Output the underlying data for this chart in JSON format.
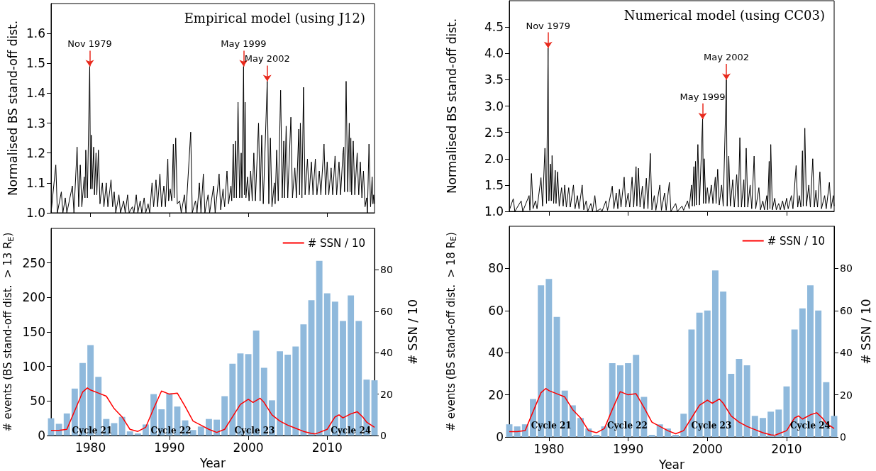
{
  "chart_data": [
    {
      "type": "line",
      "title": "Empirical model (using J12)",
      "ylabel": "Normalised BS stand-off dist.",
      "xlim": [
        1975,
        2016
      ],
      "xticks": [
        1980,
        1990,
        2000,
        2010
      ],
      "ylim": [
        1.0,
        1.7
      ],
      "yticks": [
        {
          "value": 1.0,
          "label": "1.0"
        },
        1.1,
        1.2,
        1.3,
        1.4,
        1.5,
        1.6
      ],
      "tick_labels": "y",
      "grid": false,
      "color": "#000000",
      "marker": "none",
      "x": [
        1975.0,
        1975.6,
        1975.8,
        1976.3,
        1976.5,
        1976.8,
        1977.0,
        1977.7,
        1977.9,
        1978.3,
        1978.5,
        1978.7,
        1978.9,
        1979.2,
        1979.3,
        1979.4,
        1979.6,
        1979.9,
        1980.0,
        1980.1,
        1980.2,
        1980.4,
        1980.5,
        1980.7,
        1980.8,
        1981.0,
        1981.2,
        1981.5,
        1981.7,
        1982.0,
        1982.2,
        1982.6,
        1982.8,
        1983.0,
        1983.2,
        1983.6,
        1983.8,
        1984.2,
        1984.4,
        1984.7,
        1984.9,
        1985.3,
        1985.5,
        1985.8,
        1986.0,
        1986.3,
        1986.5,
        1986.8,
        1987.0,
        1987.3,
        1987.5,
        1987.8,
        1988.0,
        1988.3,
        1988.5,
        1988.8,
        1989.0,
        1989.3,
        1989.5,
        1989.8,
        1989.9,
        1990.1,
        1990.3,
        1990.5,
        1990.6,
        1990.8,
        1991.0,
        1991.3,
        1991.5,
        1991.9,
        1992.1,
        1992.7,
        1992.9,
        1993.3,
        1993.5,
        1993.8,
        1994.0,
        1994.3,
        1994.5,
        1994.9,
        1995.1,
        1995.6,
        1995.8,
        1996.3,
        1996.5,
        1996.8,
        1997.0,
        1997.3,
        1997.5,
        1997.8,
        1997.9,
        1998.1,
        1998.2,
        1998.4,
        1998.5,
        1998.7,
        1998.9,
        1999.1,
        1999.2,
        1999.4,
        1999.5,
        1999.6,
        1999.7,
        1999.9,
        2000.1,
        2000.3,
        2000.5,
        2000.7,
        2000.9,
        2001.3,
        2001.5,
        2001.7,
        2001.9,
        2002.4,
        2002.6,
        2002.8,
        2003.0,
        2003.3,
        2003.4,
        2003.6,
        2003.8,
        2004.1,
        2004.3,
        2004.5,
        2004.6,
        2004.8,
        2005.0,
        2005.4,
        2005.6,
        2005.9,
        2006.1,
        2006.4,
        2006.5,
        2006.6,
        2006.8,
        2007.0,
        2007.2,
        2007.5,
        2007.7,
        2008.0,
        2008.2,
        2008.5,
        2008.7,
        2009.0,
        2009.2,
        2009.6,
        2009.8,
        2010.0,
        2010.2,
        2010.5,
        2010.7,
        2011.0,
        2011.2,
        2011.5,
        2011.7,
        2012.0,
        2012.1,
        2012.2,
        2012.4,
        2012.6,
        2012.8,
        2012.9,
        2013.0,
        2013.1,
        2013.3,
        2013.5,
        2013.8,
        2014.0,
        2014.2,
        2014.4,
        2014.6,
        2014.8,
        2015.0,
        2015.1,
        2015.3,
        2015.5,
        2015.7,
        2015.8,
        2015.9,
        2016.0
      ],
      "values": [
        1.0,
        1.16,
        1.0,
        1.07,
        1.0,
        1.05,
        1.0,
        1.09,
        1.0,
        1.22,
        1.02,
        1.16,
        1.02,
        1.12,
        1.05,
        1.21,
        1.05,
        1.49,
        1.08,
        1.26,
        1.08,
        1.22,
        1.06,
        1.2,
        1.06,
        1.21,
        1.03,
        1.1,
        1.02,
        1.1,
        1.02,
        1.11,
        1.02,
        1.07,
        1.0,
        1.06,
        1.0,
        1.04,
        1.0,
        1.06,
        1.0,
        1.02,
        1.0,
        1.06,
        1.0,
        1.04,
        1.0,
        1.05,
        1.0,
        1.03,
        1.0,
        1.1,
        1.02,
        1.11,
        1.02,
        1.13,
        1.02,
        1.09,
        1.02,
        1.18,
        1.04,
        1.08,
        1.04,
        1.23,
        1.05,
        1.25,
        1.03,
        1.04,
        1.0,
        1.06,
        1.0,
        1.27,
        1.0,
        1.04,
        1.0,
        1.1,
        1.0,
        1.13,
        1.0,
        1.06,
        1.0,
        1.09,
        1.0,
        1.13,
        1.01,
        1.08,
        1.02,
        1.14,
        1.03,
        1.09,
        1.04,
        1.23,
        1.05,
        1.24,
        1.05,
        1.37,
        1.05,
        1.2,
        1.05,
        1.49,
        1.06,
        1.37,
        1.05,
        1.12,
        1.04,
        1.14,
        1.04,
        1.2,
        1.04,
        1.3,
        1.04,
        1.26,
        1.03,
        1.44,
        1.03,
        1.25,
        1.02,
        1.1,
        1.03,
        1.21,
        1.04,
        1.41,
        1.05,
        1.24,
        1.05,
        1.29,
        1.05,
        1.32,
        1.05,
        1.15,
        1.05,
        1.28,
        1.06,
        1.3,
        1.05,
        1.42,
        1.06,
        1.18,
        1.06,
        1.17,
        1.06,
        1.18,
        1.06,
        1.14,
        1.06,
        1.23,
        1.06,
        1.17,
        1.06,
        1.15,
        1.06,
        1.19,
        1.06,
        1.17,
        1.06,
        1.2,
        1.22,
        1.07,
        1.44,
        1.07,
        1.3,
        1.07,
        1.25,
        1.06,
        1.24,
        1.06,
        1.2,
        1.06,
        1.17,
        1.05,
        1.14,
        1.02,
        1.05,
        1.0,
        1.23,
        1.02,
        1.12,
        1.03,
        1.06,
        1.03
      ],
      "annotations": [
        {
          "text": "Nov 1979",
          "x": 1979.9,
          "y": 1.49
        },
        {
          "text": "May 1999",
          "x": 1999.4,
          "y": 1.49
        },
        {
          "text": "May 2002",
          "x": 2002.4,
          "y": 1.44
        }
      ]
    },
    {
      "type": "line",
      "title": "Numerical model (using CC03)",
      "ylabel": "Normalised BS stand-off dist.",
      "xlim": [
        1975,
        2016
      ],
      "xticks": [
        1980,
        1990,
        2000,
        2010
      ],
      "ylim": [
        1.0,
        5.0
      ],
      "yticks": [
        {
          "value": 1.0,
          "label": "1.0"
        },
        1.5,
        {
          "value": 2.0,
          "label": "2.0"
        },
        2.5,
        {
          "value": 3.0,
          "label": "3.0"
        },
        3.5,
        {
          "value": 4.0,
          "label": "4.0"
        },
        4.5
      ],
      "tick_labels": "y",
      "grid": false,
      "color": "#000000",
      "marker": "none",
      "x": [
        1975.0,
        1975.5,
        1975.7,
        1976.5,
        1976.7,
        1977.5,
        1977.6,
        1977.8,
        1978.0,
        1978.3,
        1978.5,
        1979.0,
        1979.2,
        1979.5,
        1979.7,
        1979.9,
        1980.0,
        1980.2,
        1980.3,
        1980.4,
        1980.6,
        1980.8,
        1980.9,
        1981.1,
        1981.3,
        1981.6,
        1981.8,
        1982.0,
        1982.2,
        1982.5,
        1982.7,
        1983.1,
        1983.3,
        1983.6,
        1983.8,
        1984.2,
        1984.4,
        1984.7,
        1984.9,
        1985.3,
        1985.5,
        1985.8,
        1986.0,
        1986.5,
        1986.7,
        1987.2,
        1987.4,
        1988.0,
        1988.2,
        1988.5,
        1988.7,
        1988.9,
        1989.1,
        1989.5,
        1989.7,
        1990.0,
        1990.2,
        1990.5,
        1990.7,
        1991.0,
        1991.1,
        1991.3,
        1991.5,
        1991.8,
        1992.0,
        1992.3,
        1992.5,
        1992.8,
        1993.0,
        1993.3,
        1993.5,
        1994.0,
        1994.2,
        1994.6,
        1994.8,
        1995.2,
        1995.4,
        1996.0,
        1996.2,
        1996.8,
        1997.0,
        1997.5,
        1997.7,
        1998.0,
        1998.1,
        1998.3,
        1998.4,
        1998.5,
        1998.6,
        1998.8,
        1999.0,
        1999.4,
        1999.5,
        1999.6,
        1999.8,
        2000.0,
        2000.2,
        2000.5,
        2000.7,
        2001.0,
        2001.1,
        2001.3,
        2001.5,
        2001.8,
        2002.0,
        2002.4,
        2002.5,
        2002.7,
        2002.9,
        2003.2,
        2003.4,
        2003.7,
        2003.9,
        2004.1,
        2004.3,
        2004.6,
        2004.7,
        2004.9,
        2005.1,
        2005.4,
        2005.6,
        2005.9,
        2006.1,
        2006.5,
        2006.7,
        2007.0,
        2007.2,
        2007.5,
        2007.6,
        2007.8,
        2007.9,
        2008.0,
        2008.2,
        2008.5,
        2008.7,
        2009.0,
        2009.2,
        2009.5,
        2009.7,
        2010.0,
        2010.2,
        2010.6,
        2010.8,
        2011.2,
        2011.4,
        2011.6,
        2011.8,
        2012.0,
        2012.1,
        2012.3,
        2012.5,
        2012.8,
        2013.0,
        2013.3,
        2013.5,
        2013.7,
        2013.9,
        2014.2,
        2014.4,
        2014.8,
        2015.0,
        2015.4,
        2015.6,
        2015.9,
        2016.0
      ],
      "values": [
        1.02,
        1.24,
        1.0,
        1.2,
        1.0,
        1.3,
        1.02,
        1.72,
        1.05,
        1.2,
        1.05,
        1.64,
        1.1,
        2.2,
        1.15,
        4.1,
        1.2,
        1.9,
        1.2,
        2.06,
        1.15,
        1.78,
        1.15,
        1.75,
        1.1,
        1.45,
        1.1,
        1.5,
        1.08,
        1.45,
        1.08,
        1.5,
        1.05,
        1.3,
        1.05,
        1.5,
        1.03,
        1.2,
        1.0,
        1.15,
        1.0,
        1.3,
        1.0,
        1.05,
        1.0,
        1.2,
        1.02,
        1.48,
        1.05,
        1.35,
        1.05,
        1.42,
        1.08,
        1.65,
        1.08,
        1.35,
        1.08,
        1.65,
        1.08,
        1.85,
        1.1,
        1.82,
        1.08,
        1.48,
        1.05,
        1.63,
        1.05,
        2.1,
        1.03,
        1.3,
        1.02,
        1.5,
        1.02,
        1.35,
        1.02,
        1.55,
        1.0,
        1.15,
        1.0,
        1.1,
        1.02,
        1.2,
        1.05,
        1.5,
        1.1,
        1.85,
        1.1,
        1.95,
        1.12,
        2.27,
        1.12,
        2.75,
        1.15,
        2.0,
        1.15,
        1.45,
        1.15,
        1.5,
        1.15,
        1.65,
        1.15,
        1.8,
        1.12,
        1.5,
        1.1,
        3.5,
        1.1,
        2.05,
        1.1,
        1.6,
        1.08,
        1.7,
        1.08,
        2.4,
        1.08,
        1.6,
        1.08,
        2.2,
        1.08,
        1.5,
        1.05,
        2.05,
        1.05,
        1.45,
        1.03,
        1.2,
        1.03,
        1.3,
        1.03,
        1.95,
        1.05,
        2.27,
        1.03,
        1.25,
        1.03,
        1.15,
        1.03,
        1.2,
        1.03,
        1.25,
        1.05,
        1.3,
        1.05,
        1.87,
        1.08,
        1.3,
        1.08,
        2.15,
        1.1,
        2.58,
        1.1,
        1.5,
        1.08,
        2.0,
        1.08,
        1.4,
        1.08,
        1.75,
        1.05,
        1.3,
        1.05,
        1.55,
        1.05,
        1.3,
        1.1
      ],
      "annotations": [
        {
          "text": "Nov 1979",
          "x": 1979.9,
          "y": 4.1
        },
        {
          "text": "May 1999",
          "x": 1999.4,
          "y": 2.75
        },
        {
          "text": "May 2002",
          "x": 2002.4,
          "y": 3.5
        }
      ]
    },
    {
      "type": "bar",
      "xlabel": "Year",
      "ylabel": "# events (BS stand-off dist.  > 13 R$_{E}$)",
      "y2label": "# SSN / 10",
      "xlim": [
        1975,
        2016
      ],
      "xticks": [
        1980,
        1990,
        2000,
        2010
      ],
      "ylim": [
        0,
        300
      ],
      "yticks": [
        0,
        50,
        100,
        150,
        200,
        250
      ],
      "y2lim": [
        0,
        100
      ],
      "y2ticks": [
        0,
        20,
        40,
        60,
        80
      ],
      "grid": false,
      "legend": "top right",
      "x": [
        1975,
        1976,
        1977,
        1978,
        1979,
        1980,
        1981,
        1982,
        1983,
        1984,
        1985,
        1986,
        1987,
        1988,
        1989,
        1990,
        1991,
        1992,
        1993,
        1994,
        1995,
        1996,
        1997,
        1998,
        1999,
        2000,
        2001,
        2002,
        2003,
        2004,
        2005,
        2006,
        2007,
        2008,
        2009,
        2010,
        2011,
        2012,
        2013,
        2014,
        2015,
        2016
      ],
      "series": [
        {
          "color": "#8fb9dc",
          "values": [
            25,
            17,
            32,
            68,
            105,
            131,
            85,
            24,
            18,
            27,
            6,
            3,
            16,
            60,
            38,
            61,
            42,
            22,
            8,
            13,
            24,
            23,
            57,
            104,
            119,
            118,
            152,
            98,
            51,
            122,
            117,
            129,
            161,
            196,
            253,
            206,
            194,
            166,
            203,
            166,
            81,
            80
          ]
        },
        {
          "type": "line",
          "name": "# SSN / 10",
          "color": "#ff0000",
          "axis": "y2",
          "marker": "none",
          "x": [
            1975,
            1976,
            1977,
            1978,
            1979,
            1979.6,
            1980,
            1981,
            1982,
            1983,
            1984,
            1985,
            1986,
            1987,
            1988,
            1989,
            1990,
            1991,
            1992,
            1993,
            1994,
            1995,
            1996,
            1997,
            1998,
            1999,
            2000,
            2000.6,
            2001.5,
            2002,
            2003,
            2004,
            2005,
            2006,
            2007,
            2008,
            2008.5,
            2009,
            2010,
            2011,
            2011.5,
            2012,
            2013,
            2013.8,
            2014.5,
            2015,
            2016
          ],
          "values": [
            2.5,
            2.5,
            3,
            12,
            21,
            23,
            22,
            20.5,
            19,
            13,
            9,
            3,
            2,
            4,
            13,
            21.5,
            20,
            20.5,
            14,
            7,
            5,
            3,
            1.5,
            3,
            9,
            15,
            17.5,
            16,
            18,
            16,
            10,
            7,
            5,
            3.5,
            2,
            1,
            0.8,
            1.5,
            3,
            9,
            10,
            8.5,
            10.5,
            11.5,
            9,
            6.5,
            4
          ]
        }
      ],
      "annotations": [
        {
          "text": "Cycle 21",
          "x": 1980.2,
          "y": 7
        },
        {
          "text": "Cycle 22",
          "x": 1990.2,
          "y": 7
        },
        {
          "text": "Cycle 23",
          "x": 2000.8,
          "y": 7
        },
        {
          "text": "Cycle 24",
          "x": 2013,
          "y": 7
        }
      ]
    },
    {
      "type": "bar",
      "xlabel": "Year",
      "ylabel": "# events (BS stand-off dist.  > 18 R$_{E}$)",
      "y2label": "# SSN / 10",
      "xlim": [
        1975,
        2016
      ],
      "xticks": [
        1980,
        1990,
        2000,
        2010
      ],
      "ylim": [
        0,
        100
      ],
      "yticks": [
        0,
        20,
        40,
        60,
        80
      ],
      "y2lim": [
        0,
        100
      ],
      "y2ticks": [
        0,
        20,
        40,
        60,
        80
      ],
      "grid": false,
      "legend": "top right",
      "x": [
        1975,
        1976,
        1977,
        1978,
        1979,
        1980,
        1981,
        1982,
        1983,
        1984,
        1985,
        1986,
        1987,
        1988,
        1989,
        1990,
        1991,
        1992,
        1993,
        1994,
        1995,
        1996,
        1997,
        1998,
        1999,
        2000,
        2001,
        2002,
        2003,
        2004,
        2005,
        2006,
        2007,
        2008,
        2009,
        2010,
        2011,
        2012,
        2013,
        2014,
        2015,
        2016
      ],
      "series": [
        {
          "color": "#8fb9dc",
          "values": [
            6,
            5,
            6,
            18,
            72,
            75,
            57,
            22,
            15,
            9,
            4,
            1,
            5,
            35,
            34,
            35,
            39,
            19,
            1,
            6,
            4,
            1,
            11,
            51,
            59,
            60,
            79,
            69,
            30,
            37,
            34,
            10,
            9,
            12,
            13,
            24,
            51,
            61,
            72,
            60,
            26,
            10
          ]
        },
        {
          "type": "line",
          "name": "# SSN / 10",
          "color": "#ff0000",
          "axis": "y2",
          "marker": "none",
          "x": [
            1975,
            1976,
            1977,
            1978,
            1979,
            1979.6,
            1980,
            1981,
            1982,
            1983,
            1984,
            1985,
            1986,
            1987,
            1988,
            1989,
            1990,
            1991,
            1992,
            1993,
            1994,
            1995,
            1996,
            1997,
            1998,
            1999,
            2000,
            2000.6,
            2001.5,
            2002,
            2003,
            2004,
            2005,
            2006,
            2007,
            2008,
            2008.5,
            2009,
            2010,
            2011,
            2011.5,
            2012,
            2013,
            2013.8,
            2014.5,
            2015,
            2016
          ],
          "values": [
            2.5,
            2.5,
            3,
            12,
            21,
            23,
            22,
            20.5,
            19,
            13,
            9,
            3,
            2,
            4,
            13,
            21.5,
            20,
            20.5,
            14,
            7,
            5,
            3,
            1.5,
            3,
            9,
            15,
            17.5,
            16,
            18,
            16,
            10,
            7,
            5,
            3.5,
            2,
            1,
            0.8,
            1.5,
            3,
            9,
            10,
            8.5,
            10.5,
            11.5,
            9,
            6.5,
            4
          ]
        }
      ],
      "annotations": [
        {
          "text": "Cycle 21",
          "x": 1980.3,
          "y": 5.5
        },
        {
          "text": "Cycle 22",
          "x": 1989.9,
          "y": 5.5
        },
        {
          "text": "Cycle 23",
          "x": 2000.5,
          "y": 5.5
        },
        {
          "text": "Cycle 24",
          "x": 2013,
          "y": 5.5
        }
      ]
    }
  ]
}
